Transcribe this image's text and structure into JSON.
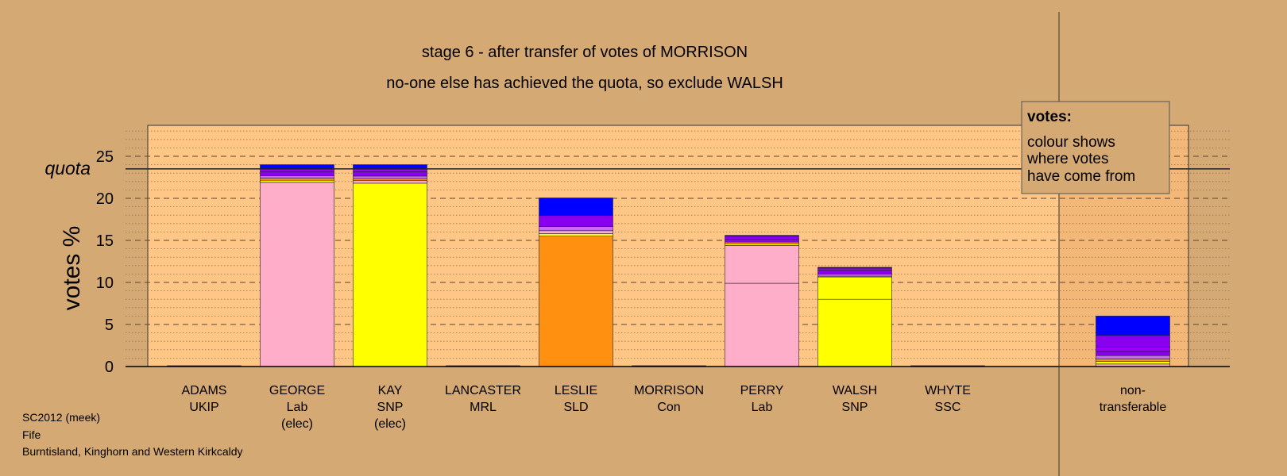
{
  "chart_data": {
    "type": "bar",
    "stacked": true,
    "title": "stage 6 - after transfer of votes of MORRISON",
    "subtitle": "no-one else has achieved the quota, so exclude WALSH",
    "ylabel": "votes %",
    "ylim": [
      0,
      28
    ],
    "yticks": [
      0,
      5,
      10,
      15,
      20,
      25
    ],
    "quota": 23.5,
    "quota_label": "quota",
    "grid": true,
    "categories": [
      {
        "name": "ADAMS",
        "party": "UKIP",
        "status": ""
      },
      {
        "name": "GEORGE",
        "party": "Lab",
        "status": "(elec)"
      },
      {
        "name": "KAY",
        "party": "SNP",
        "status": "(elec)"
      },
      {
        "name": "LANCASTER",
        "party": "MRL",
        "status": ""
      },
      {
        "name": "LESLIE",
        "party": "SLD",
        "status": ""
      },
      {
        "name": "MORRISON",
        "party": "Con",
        "status": ""
      },
      {
        "name": "PERRY",
        "party": "Lab",
        "status": ""
      },
      {
        "name": "WALSH",
        "party": "SNP",
        "status": ""
      },
      {
        "name": "WHYTE",
        "party": "SSC",
        "status": ""
      }
    ],
    "extra_category": {
      "name": "non-",
      "party": "transferable"
    },
    "bars": [
      [
        {
          "v": 0.1,
          "c": "#800080"
        }
      ],
      [
        {
          "v": 21.9,
          "c": "#ffaec9"
        },
        {
          "v": 0.25,
          "c": "#ffff00"
        },
        {
          "v": 0.25,
          "c": "#ff9010"
        },
        {
          "v": 0.3,
          "c": "#cc66ff"
        },
        {
          "v": 0.5,
          "c": "#8800ee"
        },
        {
          "v": 0.3,
          "c": "#9900ff"
        },
        {
          "v": 0.5,
          "c": "#0000ff"
        }
      ],
      [
        {
          "v": 21.8,
          "c": "#ffff00"
        },
        {
          "v": 0.3,
          "c": "#ffaec9"
        },
        {
          "v": 0.25,
          "c": "#ff9010"
        },
        {
          "v": 0.3,
          "c": "#cc66ff"
        },
        {
          "v": 0.5,
          "c": "#8800ee"
        },
        {
          "v": 0.35,
          "c": "#9900ff"
        },
        {
          "v": 0.5,
          "c": "#0000ff"
        }
      ],
      [
        {
          "v": 0.1,
          "c": "#800080"
        }
      ],
      [
        {
          "v": 15.5,
          "c": "#ff9010"
        },
        {
          "v": 0.3,
          "c": "#ffff00"
        },
        {
          "v": 0.35,
          "c": "#ffaec9"
        },
        {
          "v": 0.5,
          "c": "#cc66ff"
        },
        {
          "v": 1.3,
          "c": "#8800ee"
        },
        {
          "v": 2.1,
          "c": "#0000ff"
        }
      ],
      [
        {
          "v": 0.1,
          "c": "#800080"
        }
      ],
      [
        {
          "v": 9.9,
          "c": "#ffaec9"
        },
        {
          "v": 4.5,
          "c": "#ffaec9"
        },
        {
          "v": 0.2,
          "c": "#ffff00"
        },
        {
          "v": 0.2,
          "c": "#ff9010"
        },
        {
          "v": 0.3,
          "c": "#9900ff"
        },
        {
          "v": 0.4,
          "c": "#8800ee"
        },
        {
          "v": 0.1,
          "c": "#0000ff"
        }
      ],
      [
        {
          "v": 8.0,
          "c": "#ffff00"
        },
        {
          "v": 2.65,
          "c": "#ffff00"
        },
        {
          "v": 0.1,
          "c": "#ffaec9"
        },
        {
          "v": 0.25,
          "c": "#cc66ff"
        },
        {
          "v": 0.45,
          "c": "#8800ee"
        },
        {
          "v": 0.25,
          "c": "#9900ff"
        },
        {
          "v": 0.1,
          "c": "#0000ff"
        }
      ],
      [
        {
          "v": 0.1,
          "c": "#800080"
        }
      ]
    ],
    "extra_bar": [
      {
        "v": 0.3,
        "c": "#ffaec9"
      },
      {
        "v": 0.3,
        "c": "#ffff00"
      },
      {
        "v": 0.3,
        "c": "#ff9010"
      },
      {
        "v": 0.4,
        "c": "#cc66ff"
      },
      {
        "v": 0.5,
        "c": "#8800ee"
      },
      {
        "v": 0.5,
        "c": "#9900ff"
      },
      {
        "v": 1.4,
        "c": "#8800ee"
      },
      {
        "v": 2.3,
        "c": "#0000ff"
      }
    ]
  },
  "legend": {
    "title": "votes:",
    "lines": [
      "colour shows",
      "where votes",
      "have come from"
    ]
  },
  "footer": {
    "line1": "SC2012 (meek)",
    "line2": "Fife",
    "line3": "Burntisland, Kinghorn and Western Kirkcaldy"
  },
  "colors": {
    "background": "#d5a974",
    "plot_background": "#ffc686"
  }
}
